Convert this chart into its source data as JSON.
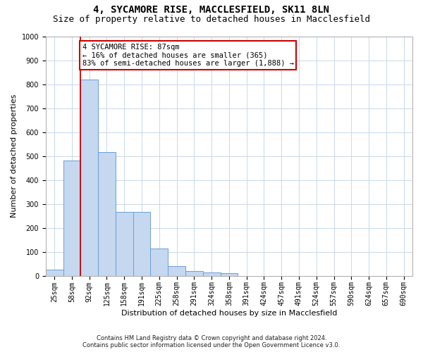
{
  "title1": "4, SYCAMORE RISE, MACCLESFIELD, SK11 8LN",
  "title2": "Size of property relative to detached houses in Macclesfield",
  "xlabel": "Distribution of detached houses by size in Macclesfield",
  "ylabel": "Number of detached properties",
  "categories": [
    "25sqm",
    "58sqm",
    "92sqm",
    "125sqm",
    "158sqm",
    "191sqm",
    "225sqm",
    "258sqm",
    "291sqm",
    "324sqm",
    "358sqm",
    "391sqm",
    "424sqm",
    "457sqm",
    "491sqm",
    "524sqm",
    "557sqm",
    "590sqm",
    "624sqm",
    "657sqm",
    "690sqm"
  ],
  "values": [
    25,
    480,
    820,
    515,
    265,
    265,
    112,
    40,
    20,
    13,
    9,
    0,
    0,
    0,
    0,
    0,
    0,
    0,
    0,
    0,
    0
  ],
  "bar_color": "#c5d8f0",
  "bar_edge_color": "#6a9fd8",
  "vline_x": 1.5,
  "annotation_line1": "4 SYCAMORE RISE: 87sqm",
  "annotation_line2": "← 16% of detached houses are smaller (365)",
  "annotation_line3": "83% of semi-detached houses are larger (1,888) →",
  "annotation_box_facecolor": "#ffffff",
  "annotation_box_edgecolor": "#cc0000",
  "vline_color": "#cc0000",
  "ylim": [
    0,
    1000
  ],
  "yticks": [
    0,
    100,
    200,
    300,
    400,
    500,
    600,
    700,
    800,
    900,
    1000
  ],
  "grid_color": "#c8d8e8",
  "footnote1": "Contains HM Land Registry data © Crown copyright and database right 2024.",
  "footnote2": "Contains public sector information licensed under the Open Government Licence v3.0.",
  "bg_color": "#ffffff",
  "title1_fontsize": 10,
  "title2_fontsize": 9,
  "xlabel_fontsize": 8,
  "ylabel_fontsize": 8,
  "tick_fontsize": 7,
  "annot_fontsize": 7.5,
  "footnote_fontsize": 6
}
